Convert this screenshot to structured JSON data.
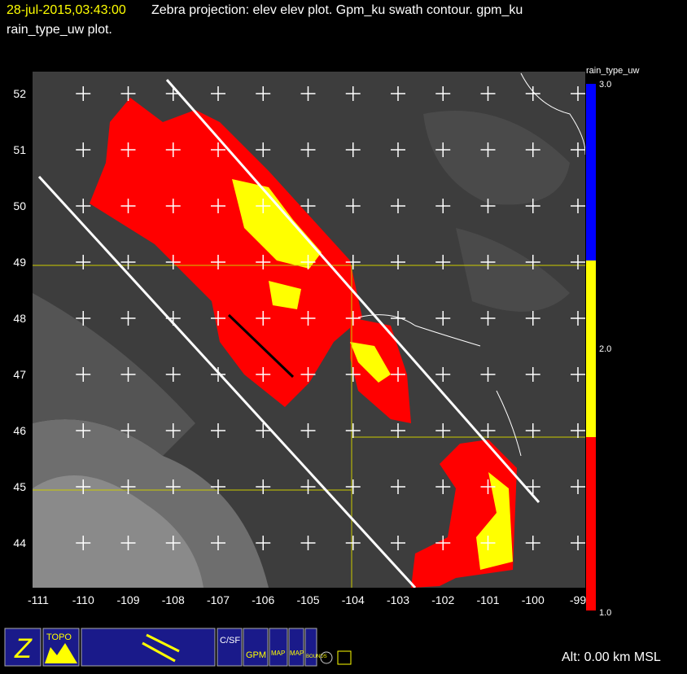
{
  "header": {
    "timestamp": "28-jul-2015,03:43:00",
    "title_rest": "Zebra projection: elev elev  plot.  Gpm_ku swath contour.  gpm_ku",
    "title_line2": "rain_type_uw  plot."
  },
  "map": {
    "lat_labels": [
      "52",
      "51",
      "50",
      "49",
      "48",
      "47",
      "46",
      "45",
      "44"
    ],
    "lon_labels": [
      "-111",
      "-110",
      "-109",
      "-108",
      "-107",
      "-106",
      "-105",
      "-104",
      "-103",
      "-102",
      "-101",
      "-100",
      "-99"
    ]
  },
  "colorbar": {
    "label": "rain_type_uw",
    "tick_labels": [
      "3.0",
      "2.0",
      "1.0"
    ]
  },
  "status": {
    "altitude": "Alt: 0.00 km MSL"
  },
  "toolbar": {
    "buttons": [
      "Z",
      "TOPO",
      "C/SF",
      "GPM",
      "MAP",
      "MAP",
      "BOUNDS"
    ]
  }
}
